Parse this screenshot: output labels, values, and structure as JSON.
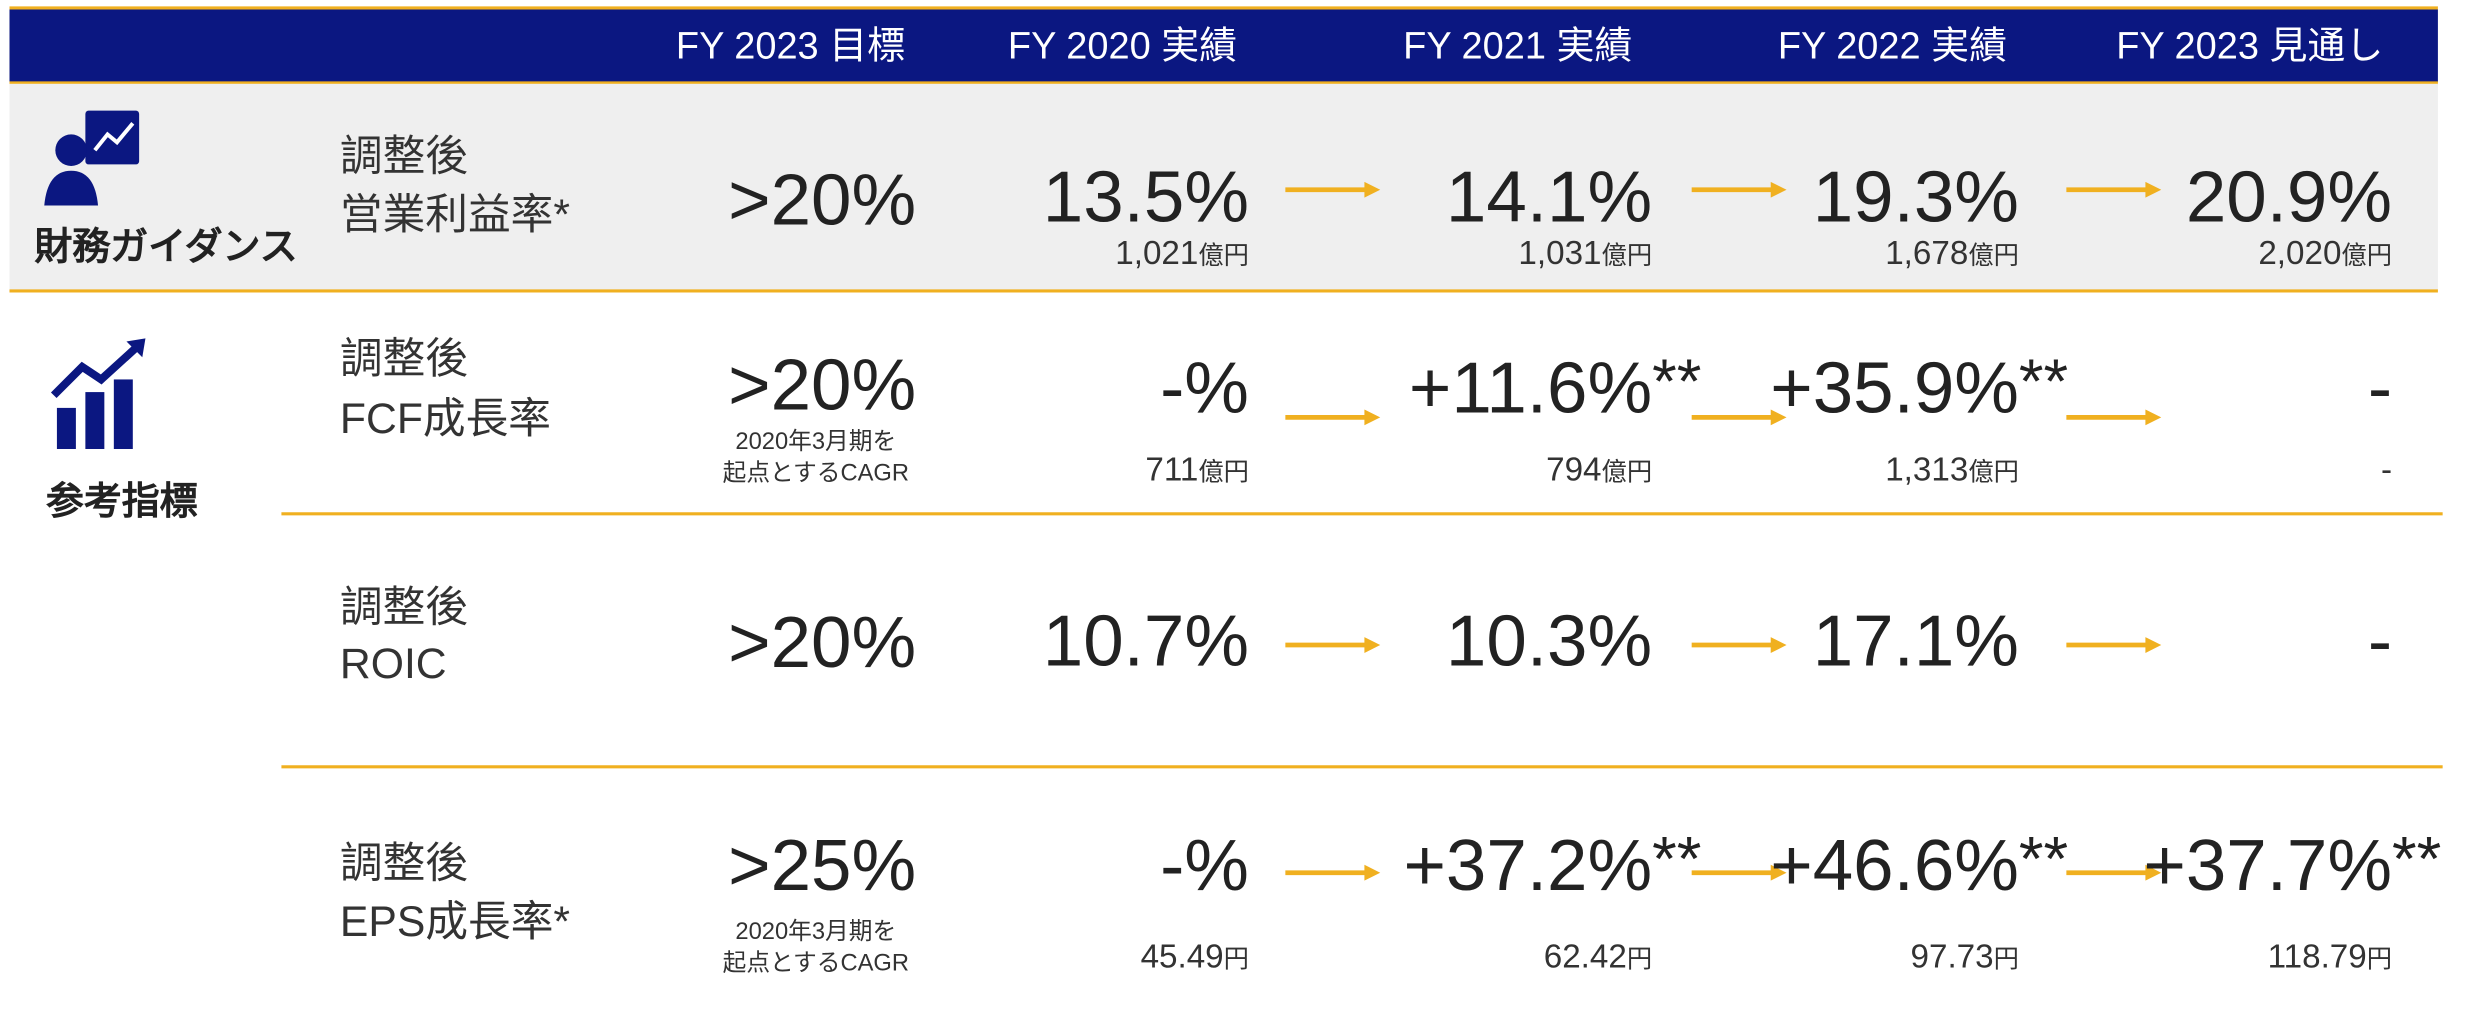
{
  "header": {
    "columns": [
      "FY 2023 目標",
      "FY 2020 実績",
      "FY 2021 実績",
      "FY 2022 実績",
      "FY 2023 見通し"
    ]
  },
  "groups": [
    {
      "label": "財務ガイダンス"
    },
    {
      "label": "参考指標"
    }
  ],
  "rows": [
    {
      "name": [
        "調整後",
        "営業利益率*"
      ],
      "target": ">20%",
      "values": [
        {
          "main": "13.5%",
          "sub": "1,021",
          "unit": "億円"
        },
        {
          "main": "14.1%",
          "sub": "1,031",
          "unit": "億円"
        },
        {
          "main": "19.3%",
          "sub": "1,678",
          "unit": "億円"
        },
        {
          "main": "20.9%",
          "sub": "2,020",
          "unit": "億円"
        }
      ]
    },
    {
      "name": [
        "調整後",
        "FCF成長率"
      ],
      "target": ">20%",
      "target_note": [
        "2020年3月期を",
        "起点とするCAGR"
      ],
      "values": [
        {
          "main": "-%",
          "sub": "711",
          "unit": "億円"
        },
        {
          "main": "+11.6%",
          "mark": "**",
          "sub": "794",
          "unit": "億円"
        },
        {
          "main": "+35.9%",
          "mark": "**",
          "sub": "1,313",
          "unit": "億円"
        },
        {
          "main": "-",
          "sub": "-"
        }
      ]
    },
    {
      "name": [
        "調整後",
        "ROIC"
      ],
      "target": ">20%",
      "values": [
        {
          "main": "10.7%"
        },
        {
          "main": "10.3%"
        },
        {
          "main": "17.1%"
        },
        {
          "main": "-"
        }
      ]
    },
    {
      "name": [
        "調整後",
        "EPS成長率*"
      ],
      "target": ">25%",
      "target_note": [
        "2020年3月期を",
        "起点とするCAGR"
      ],
      "values": [
        {
          "main": "-%",
          "sub": "45.49",
          "unit": "円"
        },
        {
          "main": "+37.2%",
          "mark": "**",
          "sub": "62.42",
          "unit": "円"
        },
        {
          "main": "+46.6%",
          "mark": "**",
          "sub": "97.73",
          "unit": "円"
        },
        {
          "main": "+37.7%",
          "mark": "**",
          "sub": "118.79",
          "unit": "円"
        }
      ]
    }
  ]
}
